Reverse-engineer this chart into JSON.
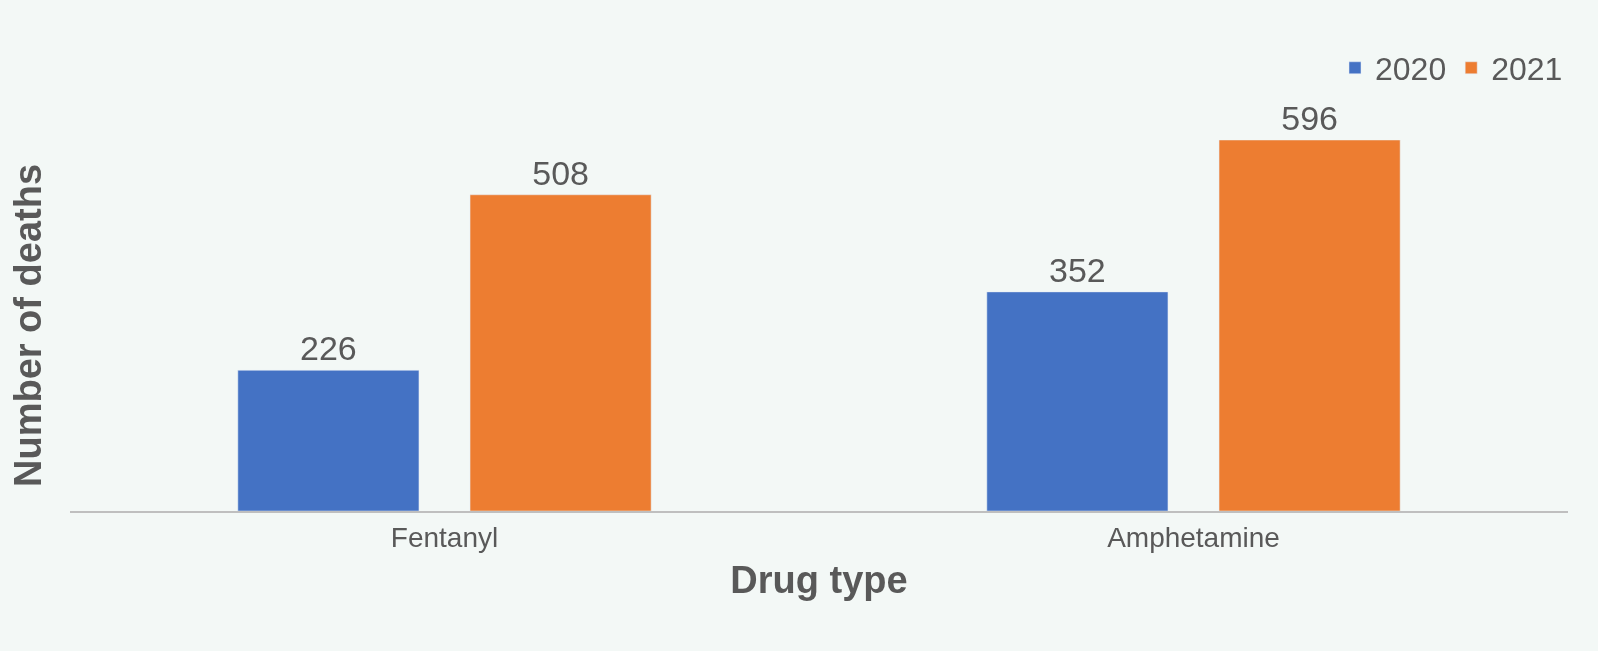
{
  "chart_data": {
    "type": "bar",
    "xlabel": "Drug type",
    "ylabel": "Number of deaths",
    "categories": [
      "Fentanyl",
      "Amphetamine"
    ],
    "series": [
      {
        "name": "2020",
        "color": "#4472c4",
        "values": [
          226,
          352
        ]
      },
      {
        "name": "2021",
        "color": "#ed7d31",
        "values": [
          508,
          596
        ]
      }
    ],
    "data_labels": true,
    "legend": "top right",
    "grid": false,
    "tick_labels": "x"
  }
}
